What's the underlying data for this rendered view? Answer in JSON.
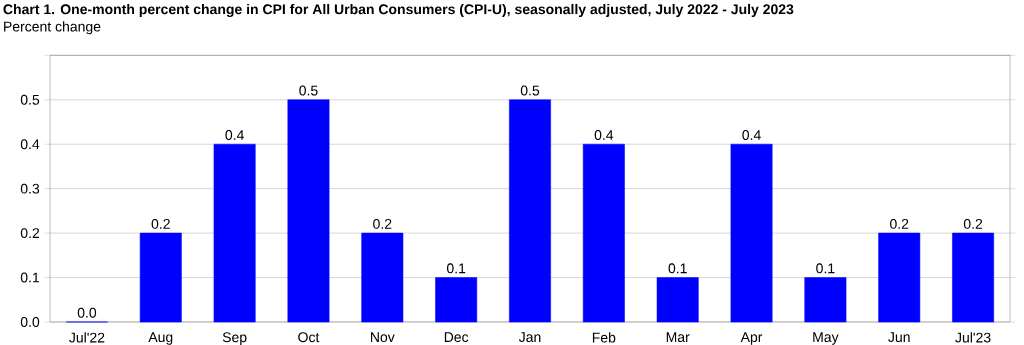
{
  "chart_data": {
    "type": "bar",
    "title": "Chart 1. One-month percent change in CPI for All Urban Consumers (CPI-U), seasonally adjusted, July 2022 - July 2023",
    "ylabel": "Percent change",
    "categories": [
      "Jul'22",
      "Aug",
      "Sep",
      "Oct",
      "Nov",
      "Dec",
      "Jan",
      "Feb",
      "Mar",
      "Apr",
      "May",
      "Jun",
      "Jul'23"
    ],
    "values": [
      0.0,
      0.2,
      0.4,
      0.5,
      0.2,
      0.1,
      0.5,
      0.4,
      0.1,
      0.4,
      0.1,
      0.2,
      0.2
    ],
    "value_labels": [
      "0.0",
      "0.2",
      "0.4",
      "0.5",
      "0.2",
      "0.1",
      "0.5",
      "0.4",
      "0.1",
      "0.4",
      "0.1",
      "0.2",
      "0.2"
    ],
    "color": "#0000ff",
    "ylim": [
      0,
      0.6
    ],
    "yticks": [
      {
        "value": 0,
        "label": "0.0"
      },
      {
        "value": 0.1,
        "label": "0.1"
      },
      {
        "value": 0.2,
        "label": "0.2"
      },
      {
        "value": 0.3,
        "label": "0.3"
      },
      {
        "value": 0.4,
        "label": "0.4"
      },
      {
        "value": 0.5,
        "label": "0.5"
      },
      {
        "value": 0.6,
        "label": null
      }
    ],
    "grid": "y"
  }
}
